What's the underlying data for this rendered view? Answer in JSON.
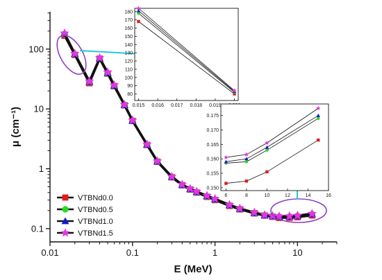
{
  "chart_data": {
    "type": "line",
    "xlabel": "E (MeV)",
    "ylabel": "μ (cm⁻¹)",
    "xscale": "log",
    "yscale": "log",
    "xlim": [
      0.01,
      30
    ],
    "ylim": [
      0.06,
      420
    ],
    "x_ticks": [
      "0.01",
      "0.1",
      "1",
      "10"
    ],
    "y_ticks": [
      "0.1",
      "1",
      "10",
      "100"
    ],
    "x": [
      0.015,
      0.02,
      0.03,
      0.04,
      0.05,
      0.06,
      0.08,
      0.1,
      0.15,
      0.2,
      0.3,
      0.4,
      0.5,
      0.6,
      0.8,
      1,
      1.5,
      2,
      3,
      4,
      5,
      6,
      8,
      10,
      15
    ],
    "series": [
      {
        "name": "VTBNd0.0",
        "color": "#e01b1b",
        "marker": "square",
        "values": [
          168,
          80,
          27,
          69,
          39,
          24,
          11.5,
          6.3,
          2.5,
          1.31,
          0.72,
          0.53,
          0.45,
          0.4,
          0.34,
          0.3,
          0.24,
          0.21,
          0.18,
          0.165,
          0.158,
          0.1515,
          0.1523,
          0.1555,
          0.1665
        ]
      },
      {
        "name": "VTBNd0.5",
        "color": "#22dd22",
        "marker": "circle",
        "values": [
          178,
          82,
          28,
          69,
          39,
          24,
          11.6,
          6.35,
          2.52,
          1.32,
          0.73,
          0.535,
          0.455,
          0.405,
          0.345,
          0.305,
          0.245,
          0.213,
          0.182,
          0.167,
          0.161,
          0.1585,
          0.159,
          0.163,
          0.174
        ]
      },
      {
        "name": "VTBNd1.0",
        "color": "#1717cc",
        "marker": "triangle",
        "values": [
          181,
          83,
          28.5,
          70,
          40,
          24.5,
          11.7,
          6.4,
          2.54,
          1.33,
          0.735,
          0.54,
          0.46,
          0.41,
          0.35,
          0.31,
          0.248,
          0.215,
          0.184,
          0.168,
          0.162,
          0.159,
          0.16,
          0.164,
          0.175
        ]
      },
      {
        "name": "VTBNd1.5",
        "color": "#e832e8",
        "marker": "star",
        "values": [
          184,
          84,
          29,
          71,
          41,
          25,
          11.8,
          6.45,
          2.56,
          1.34,
          0.74,
          0.545,
          0.465,
          0.415,
          0.355,
          0.315,
          0.25,
          0.217,
          0.186,
          0.169,
          0.163,
          0.1605,
          0.1615,
          0.1655,
          0.1775
        ]
      }
    ],
    "legend": {
      "position": "bottom-left"
    },
    "inset_left": {
      "xlim": [
        0.0148,
        0.0202
      ],
      "ylim": [
        72,
        184
      ],
      "x_ticks": [
        "0.015",
        "0.016",
        "0.017",
        "0.018",
        "0.019",
        "0.020"
      ],
      "y_ticks": [
        "80",
        "90",
        "100",
        "110",
        "120",
        "130",
        "140",
        "150",
        "160",
        "170",
        "180"
      ],
      "x": [
        0.015,
        0.02
      ],
      "series_values": [
        [
          168,
          80
        ],
        [
          178,
          82
        ],
        [
          181,
          83
        ],
        [
          184,
          84
        ]
      ]
    },
    "inset_right": {
      "xlim": [
        5.5,
        16
      ],
      "ylim": [
        0.149,
        0.179
      ],
      "x_ticks": [
        "6",
        "8",
        "10",
        "12",
        "14",
        "16"
      ],
      "y_ticks": [
        "0.150",
        "0.155",
        "0.160",
        "0.165",
        "0.170",
        "0.175"
      ],
      "x": [
        6,
        8,
        10,
        15
      ],
      "series_values": [
        [
          0.1515,
          0.1523,
          0.1555,
          0.1665
        ],
        [
          0.1585,
          0.159,
          0.163,
          0.174
        ],
        [
          0.159,
          0.16,
          0.164,
          0.175
        ],
        [
          0.1605,
          0.1615,
          0.1655,
          0.1775
        ]
      ]
    },
    "annotation_colors": {
      "ellipse": "#8b3fc0",
      "arrow": "#22c9d9"
    }
  }
}
